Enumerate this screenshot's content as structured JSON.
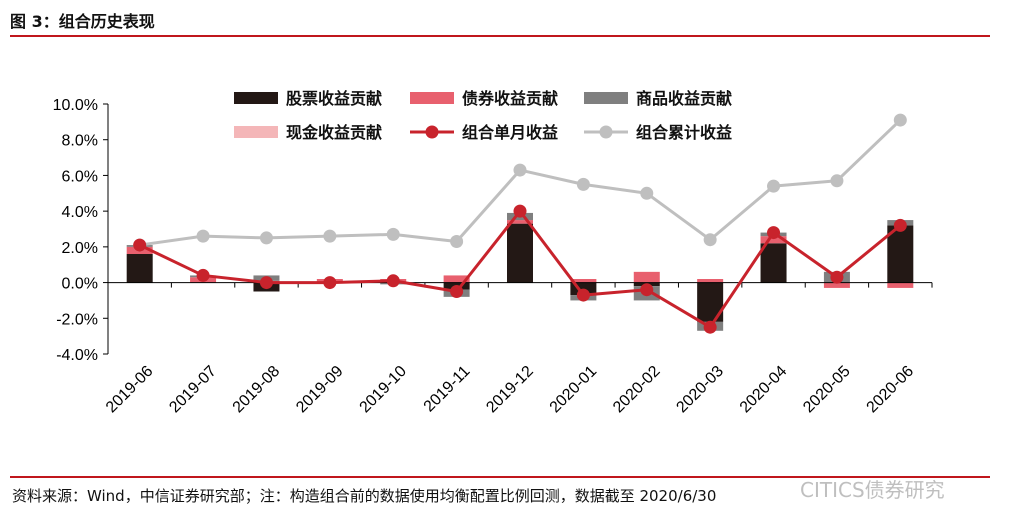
{
  "header": {
    "title": "图 3：组合历史表现"
  },
  "footer": {
    "source": "资料来源：Wind，中信证券研究部；注：构造组合前的数据使用均衡配置比例回测，数据截至 2020/6/30",
    "watermark": "CITICS债券研究"
  },
  "chart_data": {
    "type": "bar",
    "categories": [
      "2019-06",
      "2019-07",
      "2019-08",
      "2019-09",
      "2019-10",
      "2019-11",
      "2019-12",
      "2020-01",
      "2020-02",
      "2020-03",
      "2020-04",
      "2020-05",
      "2020-06"
    ],
    "y_ticks": [
      "10.0%",
      "8.0%",
      "6.0%",
      "4.0%",
      "2.0%",
      "0.0%",
      "-2.0%",
      "-4.0%"
    ],
    "ylim": [
      -4.0,
      10.0
    ],
    "y_unit": "%",
    "stacked": true,
    "legend_position": "top",
    "grid": false,
    "series": [
      {
        "name": "股票收益贡献",
        "kind": "bar",
        "color": "#231815",
        "values": [
          1.6,
          0.0,
          -0.5,
          0.0,
          0.0,
          -0.4,
          3.3,
          -0.7,
          -0.2,
          -2.2,
          2.2,
          0.0,
          3.2
        ]
      },
      {
        "name": "债券收益贡献",
        "kind": "bar",
        "color": "#e8606e",
        "values": [
          0.4,
          0.3,
          0.1,
          0.2,
          0.2,
          0.4,
          0.2,
          0.2,
          0.6,
          0.2,
          0.4,
          -0.3,
          -0.3
        ]
      },
      {
        "name": "商品收益贡献",
        "kind": "bar",
        "color": "#7f7f7f",
        "values": [
          0.1,
          0.1,
          0.3,
          0.0,
          -0.1,
          -0.4,
          0.4,
          -0.3,
          -0.8,
          -0.5,
          0.2,
          0.6,
          0.3
        ]
      },
      {
        "name": "现金收益贡献",
        "kind": "bar",
        "color": "#f4b6b8",
        "values": [
          0.0,
          0.0,
          0.0,
          0.0,
          0.0,
          0.0,
          0.0,
          0.0,
          0.0,
          0.0,
          0.0,
          0.0,
          0.0
        ]
      },
      {
        "name": "组合单月收益",
        "kind": "line",
        "color": "#c8232c",
        "values": [
          2.1,
          0.4,
          0.0,
          0.0,
          0.1,
          -0.5,
          4.0,
          -0.7,
          -0.4,
          -2.5,
          2.8,
          0.3,
          3.2
        ]
      },
      {
        "name": "组合累计收益",
        "kind": "line",
        "color": "#bfbfbf",
        "values": [
          2.1,
          2.6,
          2.5,
          2.6,
          2.7,
          2.3,
          6.3,
          5.5,
          5.0,
          2.4,
          5.4,
          5.7,
          9.1
        ]
      }
    ]
  }
}
